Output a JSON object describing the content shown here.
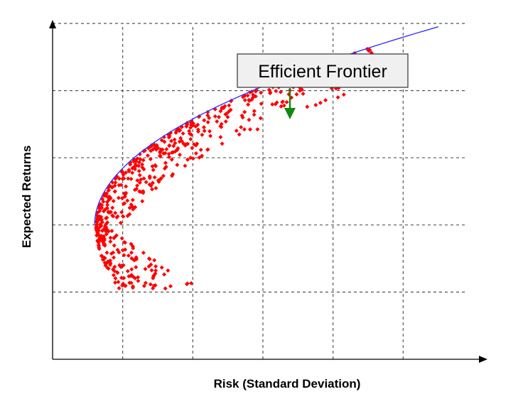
{
  "chart_data": {
    "type": "scatter",
    "title": "",
    "xlabel": "Risk (Standard Deviation)",
    "ylabel": "Expected Returns",
    "xlim": [
      0,
      6
    ],
    "ylim": [
      0,
      5
    ],
    "grid": true,
    "grid_style": "dashed",
    "x_gridlines": [
      1,
      2,
      3,
      4,
      5
    ],
    "y_gridlines": [
      1,
      2,
      3,
      4,
      5
    ],
    "tick_labels": "none",
    "series": [
      {
        "kind": "points",
        "color": "#ff0000",
        "marker": "diamond",
        "note": "simulated portfolios, 600 points filling the region bounded by the frontier curve"
      },
      {
        "kind": "line",
        "color": "#3333ff",
        "note": "frontier envelope"
      }
    ],
    "frontier": {
      "vertex": [
        0.6,
        2.0
      ],
      "end": [
        5.5,
        4.95
      ],
      "lower_end": [
        1.0,
        0.95
      ]
    },
    "annotation": {
      "text": "Efficient Frontier",
      "target": [
        3.3,
        4.3
      ],
      "arrow_color": "#118811",
      "box_fill": "#f0f0f0"
    },
    "colors": {
      "points": "#ff0000",
      "frontier": "#3333ff",
      "grid": "#555555",
      "axis": "#000000"
    }
  }
}
